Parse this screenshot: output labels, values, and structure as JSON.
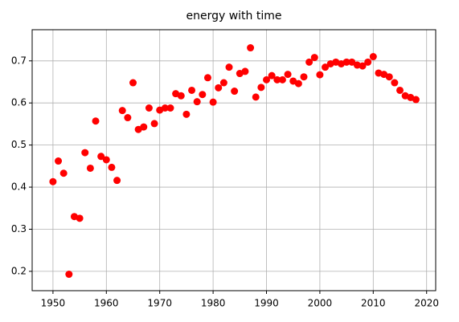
{
  "chart_data": {
    "type": "scatter",
    "title": "energy with time",
    "x": [
      1950,
      1951,
      1952,
      1953,
      1954,
      1955,
      1956,
      1957,
      1958,
      1959,
      1960,
      1961,
      1962,
      1963,
      1964,
      1965,
      1966,
      1967,
      1968,
      1969,
      1970,
      1971,
      1972,
      1973,
      1974,
      1975,
      1976,
      1977,
      1978,
      1979,
      1980,
      1981,
      1982,
      1983,
      1984,
      1985,
      1986,
      1987,
      1988,
      1989,
      1990,
      1991,
      1992,
      1993,
      1994,
      1995,
      1996,
      1997,
      1998,
      1999,
      2000,
      2001,
      2002,
      2003,
      2004,
      2005,
      2006,
      2007,
      2008,
      2009,
      2010,
      2011,
      2012,
      2013,
      2014,
      2015,
      2016,
      2017,
      2018
    ],
    "values": [
      0.413,
      0.462,
      0.433,
      0.193,
      0.33,
      0.326,
      0.482,
      0.445,
      0.557,
      0.473,
      0.465,
      0.447,
      0.416,
      0.582,
      0.565,
      0.648,
      0.537,
      0.543,
      0.588,
      0.551,
      0.583,
      0.588,
      0.588,
      0.622,
      0.617,
      0.573,
      0.63,
      0.603,
      0.62,
      0.66,
      0.602,
      0.636,
      0.648,
      0.685,
      0.628,
      0.67,
      0.675,
      0.731,
      0.614,
      0.637,
      0.655,
      0.665,
      0.655,
      0.655,
      0.668,
      0.652,
      0.646,
      0.662,
      0.697,
      0.708,
      0.667,
      0.685,
      0.693,
      0.697,
      0.693,
      0.697,
      0.697,
      0.69,
      0.688,
      0.697,
      0.71,
      0.671,
      0.668,
      0.662,
      0.648,
      0.63,
      0.617,
      0.613,
      0.608
    ],
    "color": "#ff0000",
    "xlim": [
      1946.1,
      2021.7
    ],
    "xticks": [
      1950,
      1960,
      1970,
      1980,
      1990,
      2000,
      2010,
      2020
    ],
    "ylim": [
      0.154,
      0.774
    ],
    "yticks": [
      0.2,
      0.3,
      0.4,
      0.5,
      0.6,
      0.7
    ],
    "grid": true
  }
}
